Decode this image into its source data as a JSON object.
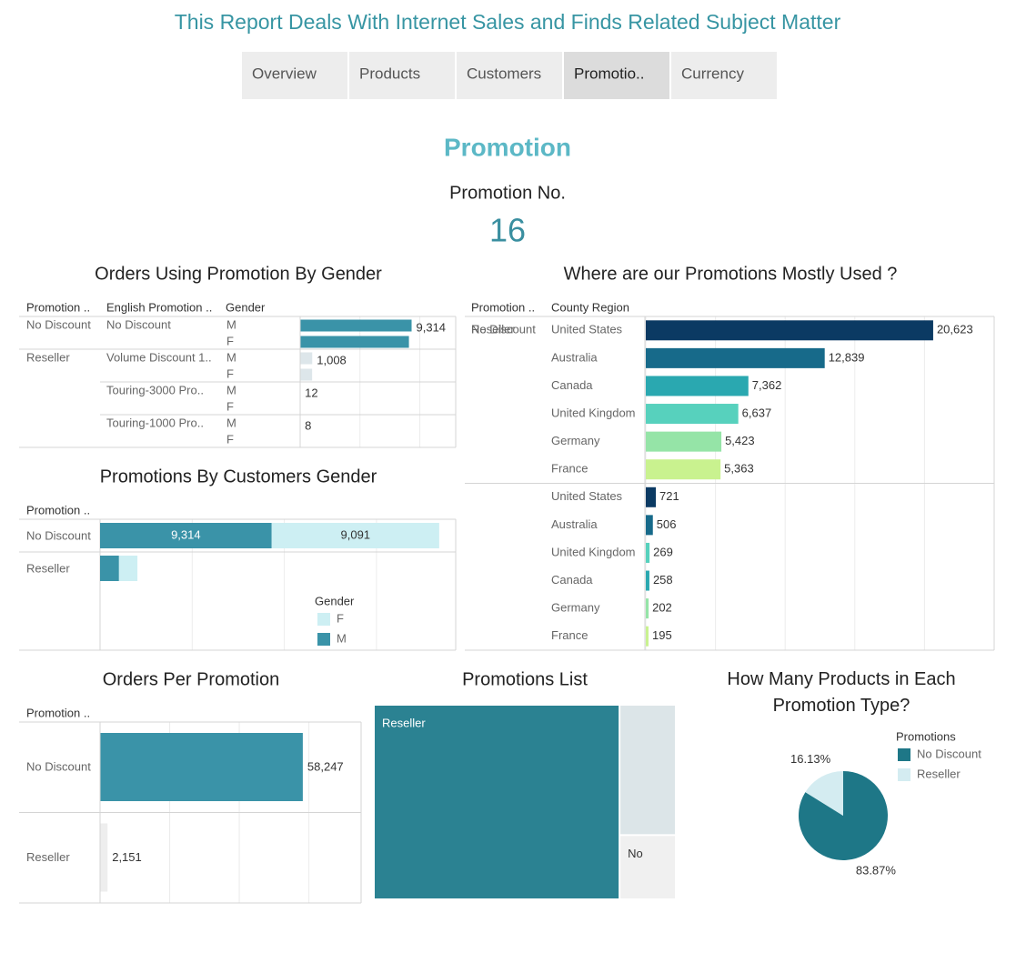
{
  "header": {
    "title": "This Report Deals With Internet Sales and Finds Related Subject Matter",
    "tabs": [
      "Overview",
      "Products",
      "Customers",
      "Promotio..",
      "Currency"
    ],
    "active_tab": 3
  },
  "section": {
    "title": "Promotion",
    "kpi_label": "Promotion No.",
    "kpi_value": 16
  },
  "chart_data": [
    {
      "type": "grouped-bar",
      "title": "Orders Using Promotion By Gender",
      "columns": [
        "Promotion ..",
        "English Promotion ..",
        "Gender"
      ],
      "groups": [
        {
          "name": "No Discount",
          "color": "#3a93a8",
          "items": [
            {
              "name": "No Discount",
              "categories": [
                "M",
                "F"
              ],
              "values": [
                9314,
                9091
              ],
              "value_labels": [
                "9,314",
                null
              ]
            }
          ]
        },
        {
          "name": "Reseller",
          "color": "#dde6ea",
          "items": [
            {
              "name": "Volume Discount 1..",
              "categories": [
                "M",
                "F"
              ],
              "values": [
                1008,
                1000
              ],
              "value_labels": [
                "1,008",
                null
              ]
            },
            {
              "name": "Touring-3000 Pro..",
              "categories": [
                "M",
                "F"
              ],
              "values": [
                12,
                10
              ],
              "value_labels": [
                "12",
                null
              ]
            },
            {
              "name": "Touring-1000 Pro..",
              "categories": [
                "M",
                "F"
              ],
              "values": [
                8,
                7
              ],
              "value_labels": [
                "8",
                null
              ]
            }
          ]
        }
      ],
      "xlim": [
        0,
        13000
      ],
      "xticks": [
        0,
        5000,
        10000
      ],
      "grid": true
    },
    {
      "type": "stacked-bar",
      "title": "Promotions By Customers Gender",
      "columns": [
        "Promotion .."
      ],
      "categories": [
        "No Discount",
        "Reseller"
      ],
      "series": [
        {
          "name": "M",
          "color": "#3a93a8",
          "values": [
            9314,
            1028
          ],
          "value_labels": [
            "9,314",
            null
          ]
        },
        {
          "name": "F",
          "color": "#cdeff3",
          "values": [
            9091,
            1000
          ],
          "value_labels": [
            "9,091",
            null
          ]
        }
      ],
      "legend": {
        "title": "Gender",
        "position": "bottom-right"
      },
      "xlim": [
        0,
        19300
      ],
      "xticks": [
        0,
        5000,
        10000,
        15000
      ],
      "grid": true
    },
    {
      "type": "region-bar",
      "title": "Where are our Promotions Mostly Used ?",
      "columns": [
        "Promotion ..",
        "County Region"
      ],
      "groups": [
        {
          "name": "No Discount",
          "items": [
            {
              "name": "United States",
              "value": 20623,
              "value_label": "20,623",
              "color": "#0b3a63"
            },
            {
              "name": "Australia",
              "value": 12839,
              "value_label": "12,839",
              "color": "#176a8a"
            },
            {
              "name": "Canada",
              "value": 7362,
              "value_label": "7,362",
              "color": "#2aa8b0"
            },
            {
              "name": "United Kingdom",
              "value": 6637,
              "value_label": "6,637",
              "color": "#57d1bd"
            },
            {
              "name": "Germany",
              "value": 5423,
              "value_label": "5,423",
              "color": "#95e4a7"
            },
            {
              "name": "France",
              "value": 5363,
              "value_label": "5,363",
              "color": "#c9f28f"
            }
          ]
        },
        {
          "name": "Reseller",
          "items": [
            {
              "name": "United States",
              "value": 721,
              "value_label": "721",
              "color": "#0b3a63"
            },
            {
              "name": "Australia",
              "value": 506,
              "value_label": "506",
              "color": "#176a8a"
            },
            {
              "name": "United Kingdom",
              "value": 269,
              "value_label": "269",
              "color": "#57d1bd"
            },
            {
              "name": "Canada",
              "value": 258,
              "value_label": "258",
              "color": "#2aa8b0"
            },
            {
              "name": "Germany",
              "value": 202,
              "value_label": "202",
              "color": "#95e4a7"
            },
            {
              "name": "France",
              "value": 195,
              "value_label": "195",
              "color": "#c9f28f"
            }
          ]
        }
      ],
      "xlim": [
        0,
        25000
      ],
      "xticks": [
        0,
        5000,
        10000,
        15000,
        20000,
        25000
      ],
      "grid": true
    },
    {
      "type": "bar",
      "title": "Orders Per Promotion",
      "columns": [
        "Promotion .."
      ],
      "categories": [
        "No Discount",
        "Reseller"
      ],
      "values": [
        58247,
        2151
      ],
      "value_labels": [
        "58,247",
        "2,151"
      ],
      "colors": [
        "#3a93a8",
        "#eeeeee"
      ],
      "xlim": [
        0,
        75000
      ],
      "xticks": [
        0,
        20000,
        40000,
        60000
      ],
      "grid": true
    },
    {
      "type": "treemap",
      "title": "Promotions List",
      "categories": [
        "Reseller",
        null,
        "No"
      ],
      "values": [
        13,
        2,
        1
      ],
      "colors": [
        "#2b8292",
        "#dce5e8",
        "#f0f0f0"
      ]
    },
    {
      "type": "pie",
      "title": "How Many Products in Each Promotion Type?",
      "categories": [
        "No Discount",
        "Reseller"
      ],
      "values": [
        83.87,
        16.13
      ],
      "value_labels": [
        "83.87%",
        "16.13%"
      ],
      "colors": [
        "#1e7787",
        "#d4ecf1"
      ],
      "legend": {
        "title": "Promotions",
        "position": "top-right"
      }
    }
  ]
}
